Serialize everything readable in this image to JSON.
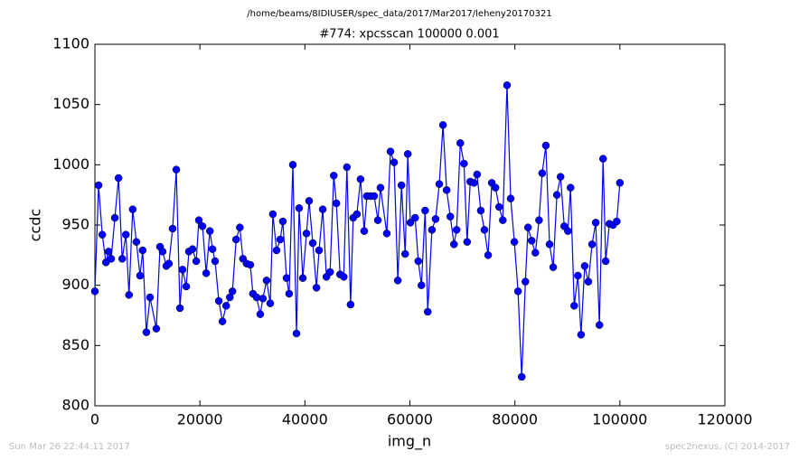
{
  "chart_data": {
    "type": "line",
    "suptitle": "/home/beams/8IDIUSER/spec_data/2017/Mar2017/leheny20170321",
    "title": "#774: xpcsscan 100000 0.001",
    "x_label": "img_n",
    "y_label": "ccdc",
    "footer_left": "Sun Mar 26 22:44:11 2017",
    "footer_right": "spec2nexus, (C) 2014-2017",
    "xlim": [
      0,
      120000
    ],
    "xticks": [
      0,
      20000,
      40000,
      60000,
      80000,
      100000,
      120000
    ],
    "ylim": [
      800,
      1100
    ],
    "yticks": [
      800,
      850,
      900,
      950,
      1000,
      1050,
      1100
    ],
    "grid": false,
    "series": [
      {
        "color": "#0000ff",
        "x": [
          0,
          700,
          1400,
          2100,
          2600,
          3100,
          3800,
          4500,
          5200,
          5900,
          6500,
          7200,
          7900,
          8600,
          9100,
          9800,
          10500,
          11700,
          12400,
          12900,
          13600,
          14100,
          14800,
          15500,
          16200,
          16700,
          17400,
          17900,
          18600,
          19300,
          19800,
          20500,
          21200,
          21900,
          22400,
          22900,
          23600,
          24300,
          25000,
          25700,
          26200,
          26900,
          27600,
          28200,
          28900,
          29600,
          30100,
          30800,
          31500,
          32000,
          32700,
          33400,
          33900,
          34600,
          35300,
          35800,
          36500,
          37000,
          37700,
          38400,
          38900,
          39600,
          40300,
          40800,
          41500,
          42200,
          42700,
          43400,
          44100,
          44800,
          45500,
          46000,
          46700,
          47400,
          48000,
          48700,
          49200,
          49900,
          50600,
          51300,
          51800,
          52500,
          53200,
          53900,
          54400,
          55600,
          56300,
          57000,
          57700,
          58400,
          59100,
          59600,
          60100,
          61000,
          61600,
          62200,
          62900,
          63400,
          64200,
          64900,
          65600,
          66300,
          67000,
          67700,
          68400,
          68900,
          69600,
          70300,
          70900,
          71500,
          72200,
          72800,
          73500,
          74200,
          74900,
          75600,
          76300,
          77000,
          77700,
          78500,
          79200,
          79900,
          80600,
          81300,
          82000,
          82500,
          83200,
          83900,
          84600,
          85200,
          85900,
          86600,
          87300,
          88000,
          88700,
          89400,
          90100,
          90600,
          91300,
          92000,
          92600,
          93300,
          94000,
          94700,
          95400,
          96100,
          96800,
          97300,
          98000,
          98700,
          99400,
          100000
        ],
        "values": [
          895,
          983,
          942,
          919,
          928,
          922,
          956,
          989,
          922,
          942,
          892,
          963,
          936,
          908,
          929,
          861,
          890,
          864,
          932,
          928,
          916,
          918,
          947,
          996,
          881,
          913,
          899,
          928,
          930,
          920,
          954,
          949,
          910,
          945,
          930,
          920,
          887,
          870,
          883,
          890,
          895,
          938,
          948,
          922,
          918,
          917,
          893,
          890,
          876,
          889,
          904,
          885,
          959,
          929,
          938,
          953,
          906,
          893,
          1000,
          860,
          964,
          906,
          943,
          970,
          935,
          898,
          929,
          963,
          907,
          911,
          991,
          968,
          909,
          907,
          998,
          884,
          956,
          959,
          988,
          945,
          974,
          974,
          974,
          954,
          981,
          943,
          1011,
          1002,
          904,
          983,
          926,
          1009,
          952,
          956,
          920,
          900,
          962,
          878,
          946,
          955,
          984,
          1033,
          979,
          957,
          934,
          946,
          1018,
          1001,
          936,
          986,
          985,
          992,
          962,
          946,
          925,
          985,
          981,
          965,
          954,
          1066,
          972,
          936,
          895,
          824,
          903,
          948,
          937,
          927,
          954,
          993,
          1016,
          934,
          915,
          975,
          990,
          949,
          945,
          981,
          883,
          908,
          859,
          916,
          903,
          934,
          952,
          867,
          1005,
          920,
          951,
          950,
          953,
          985
        ]
      }
    ]
  }
}
